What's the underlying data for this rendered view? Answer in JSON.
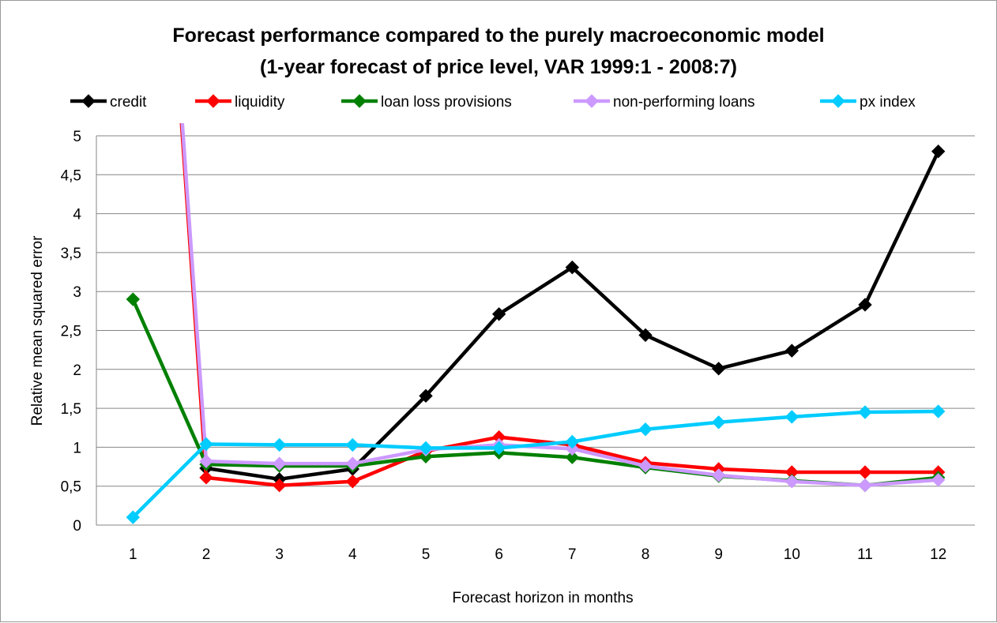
{
  "chart_data": {
    "type": "line",
    "title": "Forecast performance  compared to the purely macroeconomic model",
    "subtitle": "(1-year forecast of price level, VAR 1999:1 - 2008:7)",
    "xlabel": "Forecast horizon in months",
    "ylabel": "Relative mean squared error",
    "categories": [
      "1",
      "2",
      "3",
      "4",
      "5",
      "6",
      "7",
      "8",
      "9",
      "10",
      "11",
      "12"
    ],
    "ylim": [
      0,
      5
    ],
    "ytick_labels": [
      "0",
      "0,5",
      "1",
      "1,5",
      "2",
      "2,5",
      "3",
      "3,5",
      "4",
      "4,5",
      "5"
    ],
    "grid": "horizontal",
    "legend_position": "top",
    "series": [
      {
        "name": "credit",
        "color": "#000000",
        "values": [
          null,
          0.73,
          0.59,
          0.72,
          1.66,
          2.71,
          3.31,
          2.44,
          2.01,
          2.24,
          2.83,
          4.8
        ]
      },
      {
        "name": "liquidity",
        "color": "#ff0000",
        "values": [
          null,
          0.61,
          0.51,
          0.56,
          0.95,
          1.13,
          1.03,
          0.8,
          0.72,
          0.68,
          0.68,
          0.68
        ]
      },
      {
        "name": "loan loss provisions",
        "color": "#008000",
        "values": [
          2.9,
          0.78,
          0.76,
          0.76,
          0.88,
          0.93,
          0.87,
          0.74,
          0.63,
          0.57,
          0.51,
          0.61
        ]
      },
      {
        "name": "non-performing loans",
        "color": "#cc99ff",
        "values": [
          null,
          0.82,
          0.79,
          0.79,
          0.97,
          1.03,
          0.98,
          0.76,
          0.64,
          0.56,
          0.51,
          0.58
        ]
      },
      {
        "name": "px index",
        "color": "#00ccff",
        "values": [
          0.1,
          1.04,
          1.03,
          1.03,
          0.99,
          0.99,
          1.07,
          1.23,
          1.32,
          1.39,
          1.45,
          1.46
        ]
      }
    ]
  }
}
